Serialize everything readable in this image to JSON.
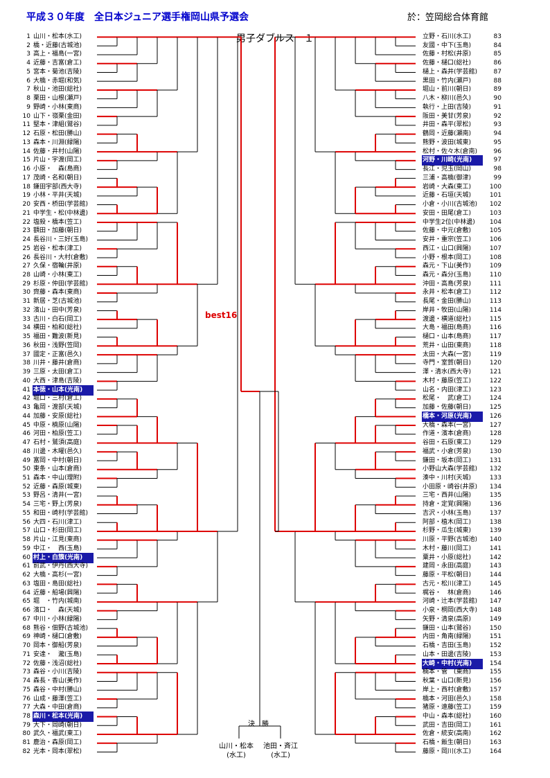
{
  "header": {
    "title": "平成３０年度　全日本ジュニア選手権岡山県予選会",
    "venue": "於：笠岡総合体育館",
    "subtitle": "男子ダブルス　１",
    "best16": "best16"
  },
  "colors": {
    "win_line": "#dd0000",
    "line": "#000000",
    "seed_bg": "#1a1aa8",
    "title": "#0000cc"
  },
  "left_entries": [
    {
      "n": "1",
      "name": "山川・松本(水工)"
    },
    {
      "n": "2",
      "name": "橋・近藤(古城池)"
    },
    {
      "n": "3",
      "name": "高上・福島(一宮)"
    },
    {
      "n": "4",
      "name": "近藤・吉富(倉工)"
    },
    {
      "n": "5",
      "name": "宮本・菊池(吉陵)"
    },
    {
      "n": "6",
      "name": "大橋・赤堀(和気)"
    },
    {
      "n": "7",
      "name": "秋山・池田(総社)"
    },
    {
      "n": "8",
      "name": "栗田・山根(瀬戸)"
    },
    {
      "n": "9",
      "name": "野崎・小林(東商)"
    },
    {
      "n": "10",
      "name": "山下・嶺栗(金田)"
    },
    {
      "n": "11",
      "name": "堅本・津組(鷲谷)"
    },
    {
      "n": "12",
      "name": "石原・松田(勝山)"
    },
    {
      "n": "13",
      "name": "森本・川淵(緑陽)"
    },
    {
      "n": "14",
      "name": "佐藤・井村(山陽)"
    },
    {
      "n": "15",
      "name": "片山・宇渡(岡工)"
    },
    {
      "n": "16",
      "name": "小原・　森(島商)"
    },
    {
      "n": "17",
      "name": "茂崎・名和(朝日)"
    },
    {
      "n": "18",
      "name": "鎌田宇部(西大寺)"
    },
    {
      "n": "19",
      "name": "小林・平井(天城)"
    },
    {
      "n": "20",
      "name": "安西・桥田(学芸館)"
    },
    {
      "n": "21",
      "name": "中学生・松(中林邊)"
    },
    {
      "n": "22",
      "name": "塩殺・橋本(笠工)"
    },
    {
      "n": "23",
      "name": "額田・加藤(朝日)"
    },
    {
      "n": "24",
      "name": "長谷川・三好(玉島)"
    },
    {
      "n": "25",
      "name": "岩谷・松本(津工)"
    },
    {
      "n": "26",
      "name": "長谷川・大村(倉敷)"
    },
    {
      "n": "27",
      "name": "久保・宿輪(井原)"
    },
    {
      "n": "28",
      "name": "山崎・小林(東工)"
    },
    {
      "n": "29",
      "name": "杉原・仲田(学芸館)"
    },
    {
      "n": "30",
      "name": "齊藤・森本(東商)"
    },
    {
      "n": "31",
      "name": "新居・芝(古城池)"
    },
    {
      "n": "32",
      "name": "濱山・田中(芳泉)"
    },
    {
      "n": "33",
      "name": "古川・白石(岡工)"
    },
    {
      "n": "34",
      "name": "横田・柏和(総社)"
    },
    {
      "n": "35",
      "name": "福田・難波(新見)"
    },
    {
      "n": "36",
      "name": "秋田・浅野(笠岡)"
    },
    {
      "n": "37",
      "name": "國定・正富(邑久)"
    },
    {
      "n": "38",
      "name": "川井・藤井(倉商)"
    },
    {
      "n": "39",
      "name": "三原・太田(倉工)"
    },
    {
      "n": "40",
      "name": "大西・津島(吉陵)"
    },
    {
      "n": "41",
      "name": "本徳・山本(光南)",
      "seed": true
    },
    {
      "n": "42",
      "name": "堀口・三村(倉工)"
    },
    {
      "n": "43",
      "name": "亀岡・渡部(天城)"
    },
    {
      "n": "44",
      "name": "加藤・安原(総社)"
    },
    {
      "n": "45",
      "name": "中原・楠原(山陽)"
    },
    {
      "n": "46",
      "name": "河田・柏原(笠工)"
    },
    {
      "n": "47",
      "name": "石村・鷲須(高庭)"
    },
    {
      "n": "48",
      "name": "川邊・木曜(邑久)"
    },
    {
      "n": "49",
      "name": "富岡・中村(朝日)"
    },
    {
      "n": "50",
      "name": "東条・山本(倉商)"
    },
    {
      "n": "51",
      "name": "森本・中山(理附)"
    },
    {
      "n": "52",
      "name": "近藤・森原(城東)"
    },
    {
      "n": "53",
      "name": "野呂・清井(一宮)"
    },
    {
      "n": "54",
      "name": "三宅・野上(芳泉)"
    },
    {
      "n": "55",
      "name": "和田・崎村(学芸館)"
    },
    {
      "n": "56",
      "name": "大四・石川(津工)"
    },
    {
      "n": "57",
      "name": "山口・杉田(岡工)"
    },
    {
      "n": "58",
      "name": "片山・江見(東商)"
    },
    {
      "n": "59",
      "name": "中江・　西(玉島)"
    },
    {
      "n": "60",
      "name": "村上・白籏(光南)",
      "seed": true
    },
    {
      "n": "61",
      "name": "前武・伊丹(西大寺)"
    },
    {
      "n": "62",
      "name": "大橋・高杉(一宮)"
    },
    {
      "n": "63",
      "name": "塩田・島田(総社)"
    },
    {
      "n": "64",
      "name": "近藤・船場(興陽)"
    },
    {
      "n": "65",
      "name": "堀　・竹内(城南)"
    },
    {
      "n": "66",
      "name": "濱口・　森(天城)"
    },
    {
      "n": "67",
      "name": "中川・小林(緑陽)"
    },
    {
      "n": "68",
      "name": "熊谷・佃野(古城池)"
    },
    {
      "n": "69",
      "name": "神崎・樋口(倉敷)"
    },
    {
      "n": "70",
      "name": "岡本・御船(芳泉)"
    },
    {
      "n": "71",
      "name": "安達・　瀧(玉島)"
    },
    {
      "n": "72",
      "name": "佐藤・浅沼(総社)"
    },
    {
      "n": "73",
      "name": "森谷・小川(吉陵)"
    },
    {
      "n": "74",
      "name": "森長・香山(美作)"
    },
    {
      "n": "75",
      "name": "森谷・中村(勝山)"
    },
    {
      "n": "76",
      "name": "山成・藤澤(笠工)"
    },
    {
      "n": "77",
      "name": "大森・中田(倉商)"
    },
    {
      "n": "78",
      "name": "森川・松本(光南)",
      "seed": true
    },
    {
      "n": "79",
      "name": "大下・岡崎(朝日)"
    },
    {
      "n": "80",
      "name": "武久・福武(東工)"
    },
    {
      "n": "81",
      "name": "鹿治・森原(岡工)"
    },
    {
      "n": "82",
      "name": "光本・岡本(翠松)"
    }
  ],
  "right_entries": [
    {
      "n": "83",
      "name": "立野・石川(水工)"
    },
    {
      "n": "84",
      "name": "友國・中下(玉島)"
    },
    {
      "n": "85",
      "name": "佐藤・村松(井原)"
    },
    {
      "n": "86",
      "name": "佐藤・樋口(総社)"
    },
    {
      "n": "87",
      "name": "樋上・森井(学芸館)"
    },
    {
      "n": "88",
      "name": "黒田・竹内(瀬戸)"
    },
    {
      "n": "89",
      "name": "堀山・前川(朝日)"
    },
    {
      "n": "90",
      "name": "八木・柳川(邑久)"
    },
    {
      "n": "91",
      "name": "執行・上田(吉陵)"
    },
    {
      "n": "92",
      "name": "阪田・美甘(芳泉)"
    },
    {
      "n": "93",
      "name": "井田・森平(翠松)"
    },
    {
      "n": "94",
      "name": "鶴岡・近藤(瀬南)"
    },
    {
      "n": "95",
      "name": "熊野・波田(城東)"
    },
    {
      "n": "96",
      "name": "松村・佐々木(倉南)"
    },
    {
      "n": "97",
      "name": "河野・川崎(光南)",
      "seed": true
    },
    {
      "n": "98",
      "name": "長江・児玉(岡山)"
    },
    {
      "n": "99",
      "name": "三浦・高橋(御津)"
    },
    {
      "n": "100",
      "name": "岩崎・大森(東工)"
    },
    {
      "n": "101",
      "name": "近藤・石垣(天城)"
    },
    {
      "n": "102",
      "name": "小倉・小川(古城池)"
    },
    {
      "n": "103",
      "name": "安田・田尾(倉工)"
    },
    {
      "n": "104",
      "name": "中学生2位(中林邊)"
    },
    {
      "n": "105",
      "name": "佐藤・中元(倉敷)"
    },
    {
      "n": "106",
      "name": "安井・重宗(笠工)"
    },
    {
      "n": "107",
      "name": "西江・山口(興陽)"
    },
    {
      "n": "108",
      "name": "小野・根本(岡工)"
    },
    {
      "n": "109",
      "name": "森元・下山(美作)"
    },
    {
      "n": "110",
      "name": "森元・森分(玉島)"
    },
    {
      "n": "111",
      "name": "沖田・高島(芳泉)"
    },
    {
      "n": "112",
      "name": "永井・松本(倉工)"
    },
    {
      "n": "113",
      "name": "長尾・金田(勝山)"
    },
    {
      "n": "114",
      "name": "岸井・牧田(山陽)"
    },
    {
      "n": "115",
      "name": "渡邊・横道(総社)"
    },
    {
      "n": "116",
      "name": "大島・福田(島商)"
    },
    {
      "n": "117",
      "name": "樋口・山本(島商)"
    },
    {
      "n": "118",
      "name": "荒井・山田(東商)"
    },
    {
      "n": "119",
      "name": "太田・大森(一宮)"
    },
    {
      "n": "120",
      "name": "寺門・室賀(朝日)"
    },
    {
      "n": "121",
      "name": "澤・清水(西大寺)"
    },
    {
      "n": "122",
      "name": "木村・藤原(笠工)"
    },
    {
      "n": "123",
      "name": "山名・内田(津工)"
    },
    {
      "n": "124",
      "name": "松尾・　武(倉工)"
    },
    {
      "n": "125",
      "name": "加藤・佐藤(朝日)"
    },
    {
      "n": "126",
      "name": "橋本・河原(光南)",
      "seed": true
    },
    {
      "n": "127",
      "name": "大橋・森本(一宮)"
    },
    {
      "n": "128",
      "name": "作道・濱本(倉商)"
    },
    {
      "n": "129",
      "name": "谷田・石原(東工)"
    },
    {
      "n": "130",
      "name": "福武・小倉(芳泉)"
    },
    {
      "n": "131",
      "name": "鎌田・坂本(岡工)"
    },
    {
      "n": "132",
      "name": "小野山大森(学芸館)"
    },
    {
      "n": "133",
      "name": "湊中・川村(天城)"
    },
    {
      "n": "134",
      "name": "小田原・崎谷(井原)"
    },
    {
      "n": "135",
      "name": "三宅・西井(山陽)"
    },
    {
      "n": "136",
      "name": "持倉・定覚(興陽)"
    },
    {
      "n": "137",
      "name": "吉沢・小林(玉島)"
    },
    {
      "n": "138",
      "name": "阿部・植木(岡工)"
    },
    {
      "n": "139",
      "name": "杉野・瓜生(城東)"
    },
    {
      "n": "140",
      "name": "川原・平野(古城池)"
    },
    {
      "n": "141",
      "name": "木村・藤川(岡工)"
    },
    {
      "n": "142",
      "name": "粟井・小原(総社)"
    },
    {
      "n": "143",
      "name": "建岡・永田(高庭)"
    },
    {
      "n": "144",
      "name": "藤原・平松(朝日)"
    },
    {
      "n": "145",
      "name": "古元・松川(津工)"
    },
    {
      "n": "146",
      "name": "梶谷・　林(倉商)"
    },
    {
      "n": "147",
      "name": "河崎・辻本(学芸館)"
    },
    {
      "n": "148",
      "name": "小泉・桐岡(西大寺)"
    },
    {
      "n": "149",
      "name": "矢野・清泉(高原)"
    },
    {
      "n": "150",
      "name": "鎌田・山本(鷲谷)"
    },
    {
      "n": "151",
      "name": "内田・角南(緑陽)"
    },
    {
      "n": "152",
      "name": "石橋・吉田(玉島)"
    },
    {
      "n": "153",
      "name": "山本・田邊(吉陵)"
    },
    {
      "n": "154",
      "name": "大崎・中村(光南)",
      "seed": true
    },
    {
      "n": "155",
      "name": "楠本・管　(東商)"
    },
    {
      "n": "156",
      "name": "秋葉・山口(新見)"
    },
    {
      "n": "157",
      "name": "岸上・西村(倉敷)"
    },
    {
      "n": "158",
      "name": "橋本・河田(邑久)"
    },
    {
      "n": "159",
      "name": "猪原・遠藤(笠工)"
    },
    {
      "n": "160",
      "name": "中山・森本(総社)"
    },
    {
      "n": "161",
      "name": "武田・吉田(岡工)"
    },
    {
      "n": "162",
      "name": "佐倉・統安(高南)"
    },
    {
      "n": "163",
      "name": "石橋・飯生(朝日)"
    },
    {
      "n": "164",
      "name": "藤原・岡川(水工)"
    }
  ],
  "final": {
    "label": "決　勝",
    "left_name": "山川・松本",
    "left_school": "(水工)",
    "right_name": "池田・斉江",
    "right_school": "(水工)"
  }
}
